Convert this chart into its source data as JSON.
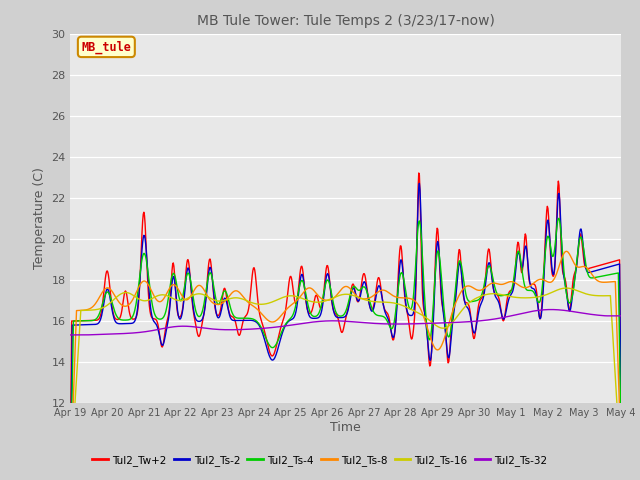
{
  "title": "MB Tule Tower: Tule Temps 2 (3/23/17-now)",
  "ylabel": "Temperature (C)",
  "xlabel": "Time",
  "ylim": [
    12,
    30
  ],
  "yticks": [
    12,
    14,
    16,
    18,
    20,
    22,
    24,
    26,
    28,
    30
  ],
  "xlim": [
    0,
    15
  ],
  "xtick_labels": [
    "Apr 19",
    "Apr 20",
    "Apr 21",
    "Apr 22",
    "Apr 23",
    "Apr 24",
    "Apr 25",
    "Apr 26",
    "Apr 27",
    "Apr 28",
    "Apr 29",
    "Apr 30",
    "May 1",
    "May 2",
    "May 3",
    "May 4"
  ],
  "line_colors": [
    "#ff0000",
    "#0000cc",
    "#00cc00",
    "#ff8800",
    "#cccc00",
    "#9900cc"
  ],
  "line_labels": [
    "Tul2_Tw+2",
    "Tul2_Ts-2",
    "Tul2_Ts-4",
    "Tul2_Ts-8",
    "Tul2_Ts-16",
    "Tul2_Ts-32"
  ],
  "bg_color": "#e8e8e8",
  "grid_color": "#ffffff",
  "annotation_text": "MB_tule",
  "annotation_color": "#cc0000",
  "annotation_bg": "#ffffcc",
  "annotation_border": "#cc8800"
}
